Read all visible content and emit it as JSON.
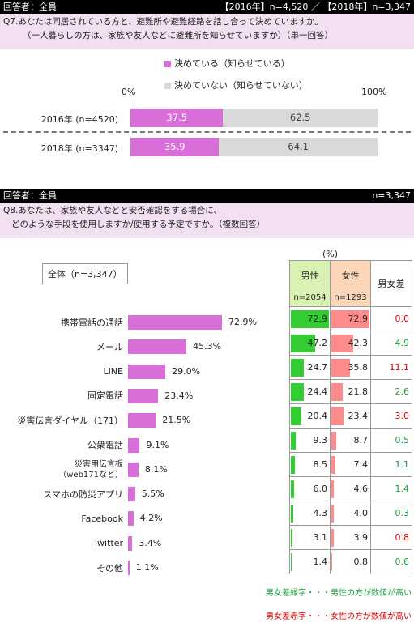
{
  "q7": {
    "header_left": "回答者：全員",
    "header_right": "【2016年】n=4,520 ／ 【2018年】n=3,347",
    "question_line1": "Q7.あなたは同居されている方と、避難所や避難経路を話し合って決めていますか。",
    "question_line2": "（一人暮らしの方は、家族や友人などに避難所を知らせていますか）（単一回答）",
    "legend_decided": "決めている（知らせている）",
    "legend_not_decided": "決めていない（知らせていない）",
    "axis_min_label": "0%",
    "axis_max_label": "100%",
    "color_decided": "#d86ed8",
    "color_not_decided": "#d9d9d9"
  },
  "q8": {
    "header_left": "回答者：全員",
    "header_right": "n=3,347",
    "question_line1": "Q8.あなたは、家族や友人などと安否確認をする場合に、",
    "question_line2": "どのような手段を使用しますか/使用する予定ですか。（複数回答）",
    "total_label": "全体（n=3,347）",
    "unit": "(%)",
    "col_male": "男性",
    "col_male_n": "n=2054",
    "col_female": "女性",
    "col_female_n": "n=1293",
    "col_diff": "男女差",
    "note_green": "男女差緑字・・・男性の方が数値が高い",
    "note_red": "男女差赤字・・・女性の方が数値が高い",
    "color_total": "#d86ed8",
    "color_male": "#33cc33",
    "color_female": "#ff8c8c",
    "color_diff_green": "#1a9e3c",
    "color_diff_red": "#e00000"
  },
  "chart_data": [
    {
      "type": "bar",
      "orientation": "horizontal-stacked",
      "categories": [
        "2016年 (n=4520)",
        "2018年 (n=3347)"
      ],
      "series": [
        {
          "name": "決めている（知らせている）",
          "values": [
            37.5,
            35.9
          ]
        },
        {
          "name": "決めていない（知らせていない）",
          "values": [
            62.5,
            64.1
          ]
        }
      ],
      "value_labels": [
        [
          "37.5",
          "62.5"
        ],
        [
          "35.9",
          "64.1"
        ]
      ],
      "xlim": [
        0,
        100
      ]
    },
    {
      "type": "bar",
      "orientation": "horizontal",
      "categories": [
        "携帯電話の通話",
        "メール",
        "LINE",
        "固定電話",
        "災害伝言ダイヤル（171）",
        "公衆電話",
        "災害用伝言板\n（web171など）",
        "スマホの防災アプリ",
        "Facebook",
        "Twitter",
        "その他"
      ],
      "values": [
        72.9,
        45.3,
        29.0,
        23.4,
        21.5,
        9.1,
        8.1,
        5.5,
        4.2,
        3.4,
        1.1
      ],
      "value_labels": [
        "72.9%",
        "45.3%",
        "29.0%",
        "23.4%",
        "21.5%",
        "9.1%",
        "8.1%",
        "5.5%",
        "4.2%",
        "3.4%",
        "1.1%"
      ]
    },
    {
      "type": "table",
      "columns": [
        "男性",
        "女性",
        "男女差"
      ],
      "rows": [
        {
          "male": 72.9,
          "female": 72.9,
          "male_label": "72.9",
          "female_label": "72.9",
          "diff": "0.0",
          "diff_color": "red"
        },
        {
          "male": 47.2,
          "female": 42.3,
          "male_label": "47.2",
          "female_label": "42.3",
          "diff": "4.9",
          "diff_color": "green"
        },
        {
          "male": 24.7,
          "female": 35.8,
          "male_label": "24.7",
          "female_label": "35.8",
          "diff": "11.1",
          "diff_color": "red"
        },
        {
          "male": 24.4,
          "female": 21.8,
          "male_label": "24.4",
          "female_label": "21.8",
          "diff": "2.6",
          "diff_color": "green"
        },
        {
          "male": 20.4,
          "female": 23.4,
          "male_label": "20.4",
          "female_label": "23.4",
          "diff": "3.0",
          "diff_color": "red"
        },
        {
          "male": 9.3,
          "female": 8.7,
          "male_label": "9.3",
          "female_label": "8.7",
          "diff": "0.5",
          "diff_color": "green"
        },
        {
          "male": 8.5,
          "female": 7.4,
          "male_label": "8.5",
          "female_label": "7.4",
          "diff": "1.1",
          "diff_color": "green"
        },
        {
          "male": 6.0,
          "female": 4.6,
          "male_label": "6.0",
          "female_label": "4.6",
          "diff": "1.4",
          "diff_color": "green"
        },
        {
          "male": 4.3,
          "female": 4.0,
          "male_label": "4.3",
          "female_label": "4.0",
          "diff": "0.3",
          "diff_color": "green"
        },
        {
          "male": 3.1,
          "female": 3.9,
          "male_label": "3.1",
          "female_label": "3.9",
          "diff": "0.8",
          "diff_color": "red"
        },
        {
          "male": 1.4,
          "female": 0.8,
          "male_label": "1.4",
          "female_label": "0.8",
          "diff": "0.6",
          "diff_color": "green"
        }
      ]
    }
  ]
}
